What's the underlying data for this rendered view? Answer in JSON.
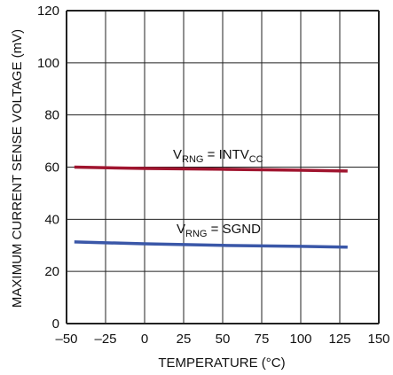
{
  "chart_data": {
    "type": "line",
    "xlabel": "TEMPERATURE (°C)",
    "ylabel": "MAXIMUM CURRENT SENSE VOLTAGE (mV)",
    "xlim": [
      -50,
      150
    ],
    "ylim": [
      0,
      120
    ],
    "x_ticks": [
      "–50",
      "–25",
      "0",
      "25",
      "50",
      "75",
      "100",
      "125",
      "150"
    ],
    "y_ticks": [
      "0",
      "20",
      "40",
      "60",
      "80",
      "100",
      "120"
    ],
    "grid": true,
    "colors": {
      "upper": "#a0152f",
      "lower": "#3a57a8",
      "grid": "#222222"
    },
    "series": [
      {
        "label_main": "V",
        "label_sub": "RNG",
        "label_rest": " = INTV",
        "label_sub2": "CC",
        "x": [
          -45,
          0,
          50,
          100,
          130
        ],
        "y": [
          60.0,
          59.5,
          59.2,
          58.8,
          58.5
        ]
      },
      {
        "label_main": "V",
        "label_sub": "RNG",
        "label_rest": " = SGND",
        "label_sub2": "",
        "x": [
          -45,
          0,
          50,
          100,
          130
        ],
        "y": [
          31.3,
          30.6,
          30.0,
          29.6,
          29.3
        ]
      }
    ]
  }
}
